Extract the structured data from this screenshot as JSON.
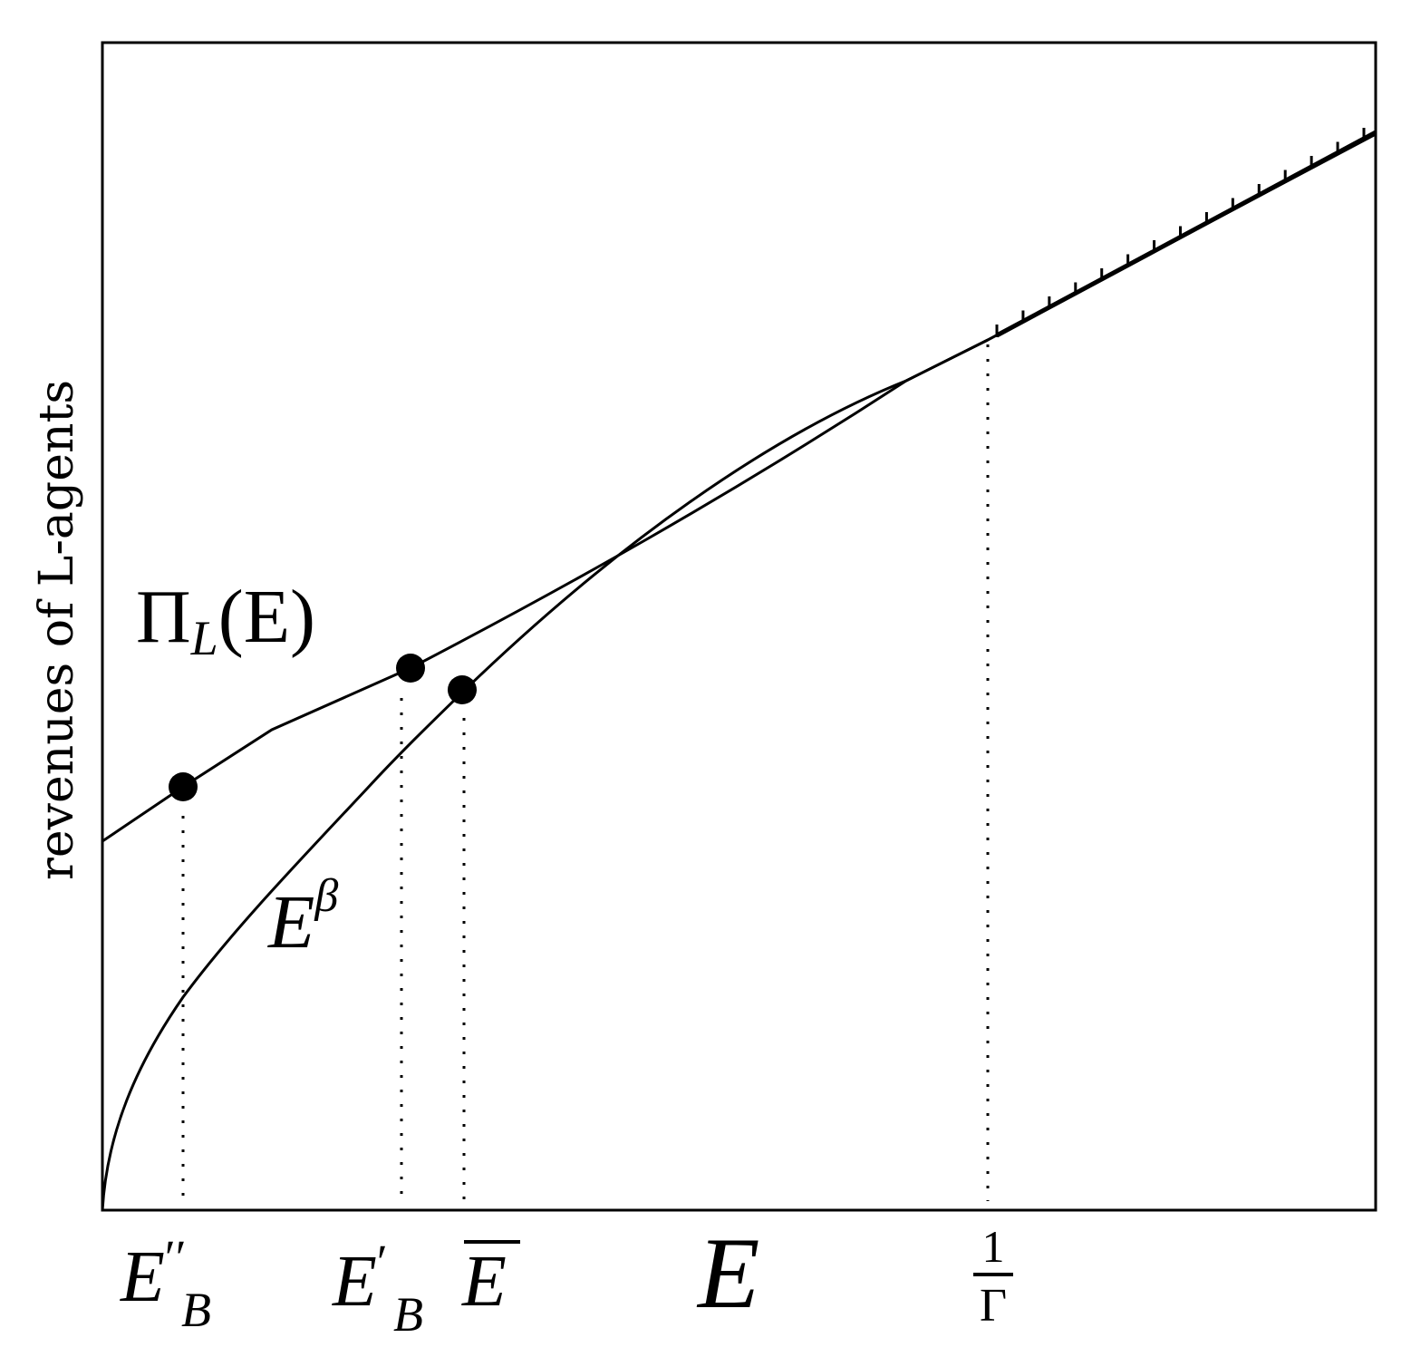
{
  "figure": {
    "y_axis_label": "revenues of L-agents",
    "x_axis_label": "E",
    "curves": [
      {
        "name": "Π_L(E)",
        "label_main": "Π",
        "label_sub": "L",
        "label_tail": "(E)",
        "kind": "line"
      },
      {
        "name": "E^β",
        "label_main": "E",
        "label_sup": "β",
        "kind": "concave"
      }
    ],
    "x_ticks": {
      "e_b_double_prime": {
        "main": "E",
        "sup": "′′",
        "sub": "B"
      },
      "e_b_prime": {
        "main": "E",
        "sup": "′",
        "sub": "B"
      },
      "e_bar": {
        "main": "E",
        "overline": true
      },
      "one_over_gamma": {
        "numerator": "1",
        "denominator": "Γ"
      }
    },
    "markers": [
      {
        "on": "Π_L(E)",
        "at": "E_B''"
      },
      {
        "on": "Π_L(E)",
        "at": "E_B'"
      },
      {
        "on": "E^β",
        "at": "Ē"
      }
    ],
    "colors": {
      "ink": "#000000",
      "background": "#ffffff"
    }
  }
}
